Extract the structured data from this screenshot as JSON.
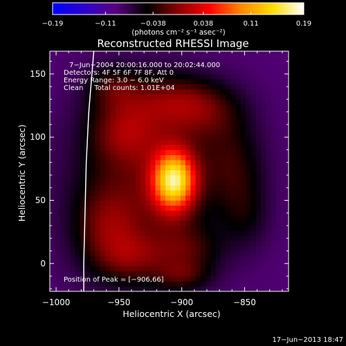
{
  "chart_data": {
    "type": "heatmap",
    "title": "Reconstructed RHESSI Image",
    "xlabel": "Heliocentric X (arcsec)",
    "ylabel": "Heliocentric Y (arcsec)",
    "xlim": [
      -1005,
      -815
    ],
    "ylim": [
      -22,
      168
    ],
    "x_ticks": [
      -1000,
      -950,
      -900,
      -850
    ],
    "x_tick_labels": [
      "−1000",
      "−950",
      "−900",
      "−850"
    ],
    "y_ticks": [
      0,
      50,
      100,
      150
    ],
    "y_tick_labels": [
      "0",
      "50",
      "100",
      "150"
    ],
    "colorbar": {
      "min": -0.19,
      "max": 0.19,
      "ticks": [
        -0.19,
        -0.11,
        -0.038,
        0.038,
        0.11,
        0.19
      ],
      "tick_labels": [
        "−0.19",
        "−0.11",
        "−0.038",
        "0.038",
        "0.11",
        "0.19"
      ],
      "unit_label": "(photons cm⁻² s⁻¹ asec⁻²)",
      "colors": [
        "#0000ff",
        "#2d00d0",
        "#5a0080",
        "#000000",
        "#8b0000",
        "#ff0000",
        "#ff8800",
        "#ffdd00",
        "#ffffff"
      ]
    },
    "annotations": [
      "7−Jun−2004 20:00:16.000 to 20:02:44.000",
      "Detectors: 4F 5F 6F 7F 8F, Att 0",
      "Energy Range: 3.0 − 6.0 keV",
      "Clean     Total counts: 1.01E+04"
    ],
    "peak_label": "Position of Peak = [−906,66]",
    "peak": {
      "x": -906,
      "y": 66,
      "value": 0.19
    },
    "limb_line": [
      [
        -970,
        168
      ],
      [
        -974,
        120
      ],
      [
        -976,
        80
      ],
      [
        -977,
        40
      ],
      [
        -978,
        0
      ],
      [
        -978,
        -22
      ]
    ],
    "sources": [
      {
        "x": -906,
        "y": 66,
        "amp": 0.21,
        "sx": 12,
        "sy": 17
      },
      {
        "x": -930,
        "y": 60,
        "amp": 0.065,
        "sx": 40,
        "sy": 50
      },
      {
        "x": -945,
        "y": 105,
        "amp": 0.06,
        "sx": 20,
        "sy": 18
      },
      {
        "x": -910,
        "y": 130,
        "amp": 0.055,
        "sx": 25,
        "sy": 15
      },
      {
        "x": -880,
        "y": 120,
        "amp": 0.05,
        "sx": 22,
        "sy": 16
      },
      {
        "x": -860,
        "y": 80,
        "amp": 0.045,
        "sx": 18,
        "sy": 22
      },
      {
        "x": -960,
        "y": 30,
        "amp": 0.05,
        "sx": 18,
        "sy": 22
      },
      {
        "x": -940,
        "y": 5,
        "amp": 0.05,
        "sx": 20,
        "sy": 14
      },
      {
        "x": -895,
        "y": 10,
        "amp": 0.045,
        "sx": 18,
        "sy": 14
      },
      {
        "x": -955,
        "y": 140,
        "amp": 0.045,
        "sx": 15,
        "sy": 12
      },
      {
        "x": -900,
        "y": -10,
        "amp": 0.04,
        "sx": 15,
        "sy": 8
      },
      {
        "x": -850,
        "y": 40,
        "amp": 0.035,
        "sx": 14,
        "sy": 20
      }
    ],
    "baseline": -0.09
  },
  "footer": {
    "timestamp": "17−Jun−2013 18:47"
  }
}
